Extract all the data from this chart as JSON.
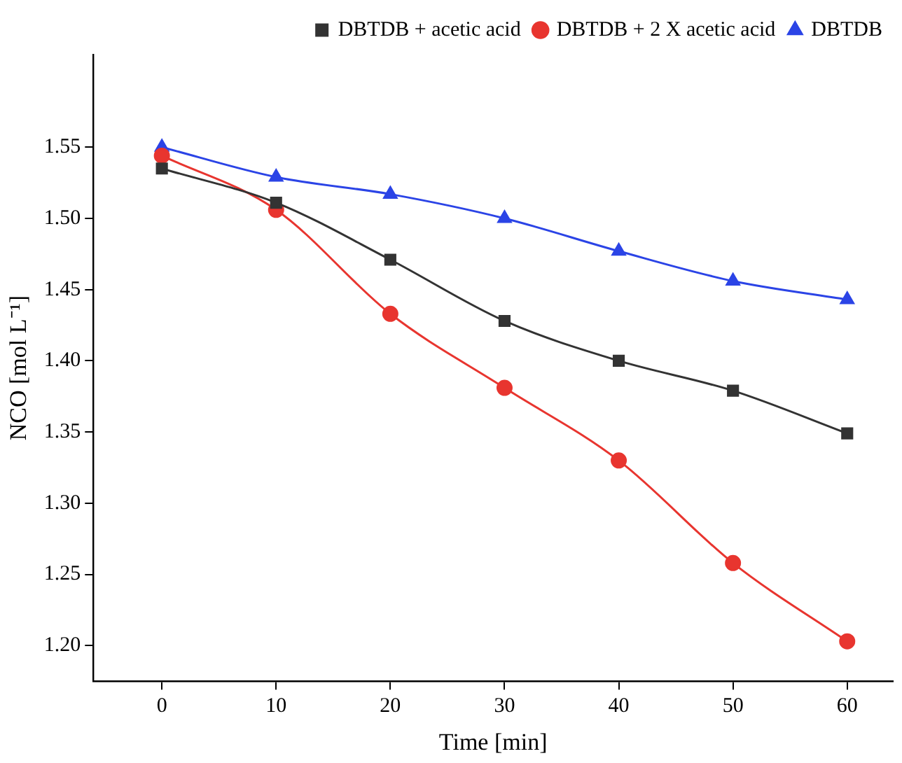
{
  "chart_data": {
    "type": "line",
    "xlabel": "Time [min]",
    "ylabel": "NCO [mol L⁻¹]",
    "x": [
      0,
      10,
      20,
      30,
      40,
      50,
      60
    ],
    "series": [
      {
        "name": "DBTDB + acetic acid",
        "color": "#333333",
        "marker": "square",
        "values": [
          1.535,
          1.511,
          1.471,
          1.428,
          1.4,
          1.379,
          1.349
        ]
      },
      {
        "name": "DBTDB + 2 X acetic acid",
        "color": "#e8352f",
        "marker": "circle",
        "values": [
          1.544,
          1.506,
          1.433,
          1.381,
          1.33,
          1.258,
          1.203
        ]
      },
      {
        "name": "DBTDB",
        "color": "#2b44e6",
        "marker": "triangle",
        "values": [
          1.55,
          1.529,
          1.517,
          1.5,
          1.477,
          1.456,
          1.443
        ]
      }
    ],
    "xlim": [
      -6,
      64
    ],
    "xticks": [
      0,
      10,
      20,
      30,
      40,
      50,
      60
    ],
    "ylim": [
      1.175,
      1.615
    ],
    "yticks": [
      {
        "value": 1.2,
        "label": "1.20"
      },
      {
        "value": 1.25,
        "label": "1.25"
      },
      {
        "value": 1.3,
        "label": "1.30"
      },
      {
        "value": 1.35,
        "label": "1.35"
      },
      {
        "value": 1.4,
        "label": "1.40"
      },
      {
        "value": 1.45,
        "label": "1.45"
      },
      {
        "value": 1.5,
        "label": "1.50"
      },
      {
        "value": 1.55,
        "label": "1.55"
      }
    ],
    "grid": false,
    "legend": "top right"
  }
}
